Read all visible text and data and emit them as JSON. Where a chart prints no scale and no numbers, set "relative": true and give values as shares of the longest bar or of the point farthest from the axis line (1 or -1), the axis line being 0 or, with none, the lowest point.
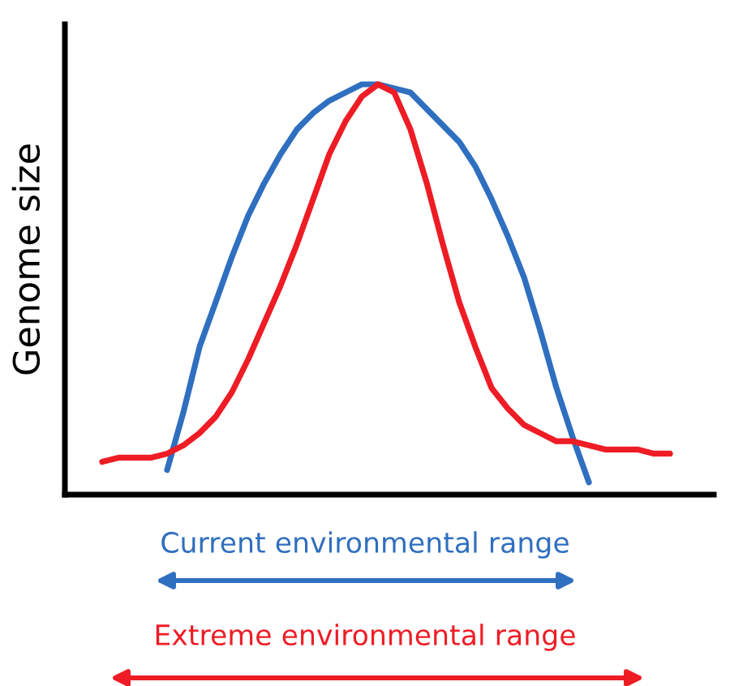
{
  "chart_data": {
    "type": "line",
    "relative": true,
    "ylabel": "Genome size",
    "grid": false,
    "legend": false,
    "marker": "none",
    "line_style": "solid",
    "categories": [
      null,
      null,
      null,
      null,
      null,
      null,
      null,
      null,
      null,
      null,
      null,
      null,
      null,
      null,
      null,
      null,
      null,
      null,
      null,
      null,
      null,
      null,
      null,
      null,
      null,
      null,
      null,
      null,
      null,
      null,
      null,
      null,
      null,
      null,
      null,
      null
    ],
    "series": [
      {
        "color": "#2f6fbf",
        "values": [
          null,
          null,
          null,
          null,
          0.06,
          0.2,
          0.36,
          0.47,
          0.58,
          0.68,
          0.76,
          0.83,
          0.89,
          0.93,
          0.96,
          0.98,
          1.0,
          1.0,
          0.99,
          0.98,
          0.94,
          0.9,
          0.86,
          0.8,
          0.72,
          0.63,
          0.53,
          0.4,
          0.26,
          0.14,
          0.03,
          null,
          null,
          null,
          null,
          null
        ]
      },
      {
        "color": "#ee1c25",
        "values": [
          0.08,
          0.09,
          0.09,
          0.09,
          0.1,
          0.12,
          0.15,
          0.19,
          0.25,
          0.33,
          0.42,
          0.51,
          0.61,
          0.72,
          0.83,
          0.91,
          0.97,
          1.0,
          0.98,
          0.89,
          0.76,
          0.61,
          0.47,
          0.36,
          0.26,
          0.21,
          0.17,
          0.15,
          0.13,
          0.13,
          0.12,
          0.11,
          0.11,
          0.11,
          0.1,
          0.1
        ]
      }
    ],
    "annotations": [
      "Current environmental range",
      "Extreme environmental range"
    ]
  }
}
